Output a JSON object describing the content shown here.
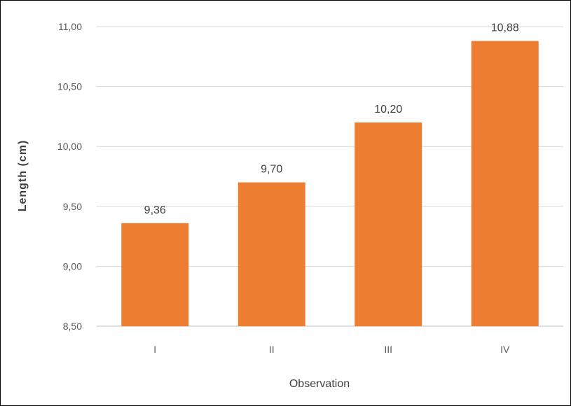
{
  "chart_data": {
    "type": "bar",
    "categories": [
      "I",
      "II",
      "III",
      "IV"
    ],
    "values": [
      9.36,
      9.7,
      10.2,
      10.88
    ],
    "value_labels": [
      "9,36",
      "9,70",
      "10,20",
      "10,88"
    ],
    "xlabel": "Observation",
    "ylabel": "Length (cm)",
    "ylim": [
      8.5,
      11.0
    ],
    "yticks": [
      8.5,
      9.0,
      9.5,
      10.0,
      10.5,
      11.0
    ],
    "ytick_labels": [
      "8,50",
      "9,00",
      "9,50",
      "10,00",
      "10,50",
      "11,00"
    ],
    "grid": true,
    "legend": "none",
    "bar_color": "#ED7D31",
    "grid_color": "#D9D9D9"
  }
}
